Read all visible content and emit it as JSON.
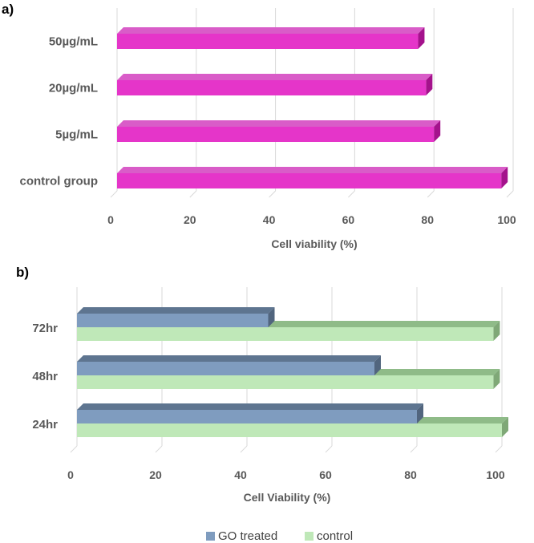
{
  "chart_data": [
    {
      "panel": "a)",
      "type": "bar",
      "orientation": "horizontal",
      "categories": [
        "50µg/mL",
        "20µg/mL",
        "5µg/mL",
        "control group"
      ],
      "values": [
        76,
        78,
        80,
        97
      ],
      "xlabel": "Cell viability (%)",
      "ylabel": "",
      "xlim": [
        0,
        100
      ],
      "xticks": [
        "0",
        "20",
        "40",
        "60",
        "80",
        "100"
      ],
      "grid": true,
      "colors": {
        "bar": "#e535c9",
        "bar_top": "#d95cc8",
        "bar_side": "#a4128c"
      }
    },
    {
      "panel": "b)",
      "type": "bar",
      "orientation": "horizontal",
      "categories": [
        "72hr",
        "48hr",
        "24hr"
      ],
      "series": [
        {
          "name": "GO treated",
          "values": [
            45,
            70,
            80
          ],
          "color": "#7f9cbf",
          "top": "#5e7590",
          "side": "#51657e"
        },
        {
          "name": "control",
          "values": [
            98,
            98,
            100
          ],
          "color": "#bfe8b8",
          "top": "#8fbb88",
          "side": "#7fa877"
        }
      ],
      "xlabel": "Cell Viability (%)",
      "ylabel": "",
      "xlim": [
        0,
        100
      ],
      "xticks": [
        "0",
        "20",
        "40",
        "60",
        "80",
        "100"
      ],
      "grid": true,
      "legend": "bottom"
    }
  ]
}
